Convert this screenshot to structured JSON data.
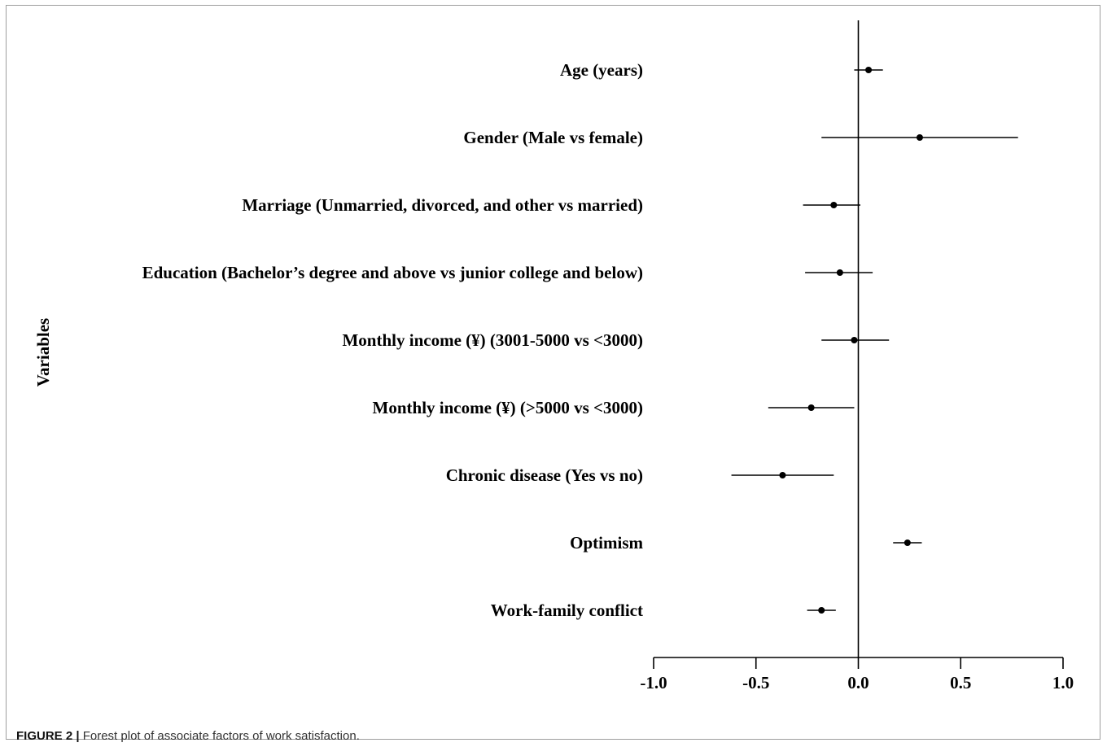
{
  "chart_data": {
    "type": "forest",
    "ylabel": "Variables",
    "xlim": [
      -1.0,
      1.0
    ],
    "xticks": [
      -1.0,
      -0.5,
      0.0,
      0.5,
      1.0
    ],
    "xtick_labels": [
      "-1.0",
      "-0.5",
      "0.0",
      "0.5",
      "1.0"
    ],
    "reference_line": 0.0,
    "rows": [
      {
        "label": "Age (years)",
        "estimate": 0.05,
        "lower": -0.02,
        "upper": 0.12
      },
      {
        "label": "Gender (Male vs female)",
        "estimate": 0.3,
        "lower": -0.18,
        "upper": 0.78
      },
      {
        "label": "Marriage (Unmarried, divorced, and other vs married)",
        "estimate": -0.12,
        "lower": -0.27,
        "upper": 0.01
      },
      {
        "label": "Education (Bachelor’s degree and above vs junior college and below)",
        "estimate": -0.09,
        "lower": -0.26,
        "upper": 0.07
      },
      {
        "label": "Monthly income (¥) (3001-5000 vs <3000)",
        "estimate": -0.02,
        "lower": -0.18,
        "upper": 0.15
      },
      {
        "label": "Monthly income (¥) (>5000 vs <3000)",
        "estimate": -0.23,
        "lower": -0.44,
        "upper": -0.02
      },
      {
        "label": "Chronic disease (Yes vs no)",
        "estimate": -0.37,
        "lower": -0.62,
        "upper": -0.12
      },
      {
        "label": "Optimism",
        "estimate": 0.24,
        "lower": 0.17,
        "upper": 0.31
      },
      {
        "label": "Work-family conflict",
        "estimate": -0.18,
        "lower": -0.25,
        "upper": -0.11
      }
    ]
  },
  "caption": {
    "label": "FIGURE 2 |",
    "text": " Forest plot of associate factors of work satisfaction."
  },
  "colors": {
    "marks": "#000000",
    "frame": "#9e9e9e"
  }
}
